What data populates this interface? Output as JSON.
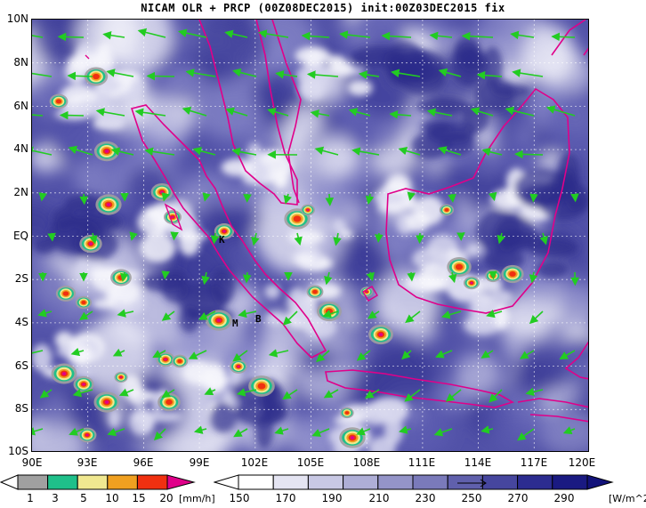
{
  "title": "NICAM OLR + PRCP (00Z08DEC2015) init:00Z03DEC2015 fix",
  "axes": {
    "y_ticks": [
      "10N",
      "8N",
      "6N",
      "4N",
      "2N",
      "EQ",
      "2S",
      "4S",
      "6S",
      "8S",
      "10S"
    ],
    "x_ticks": [
      "90E",
      "93E",
      "96E",
      "99E",
      "102E",
      "105E",
      "108E",
      "111E",
      "114E",
      "117E",
      "120E"
    ],
    "lon_range": [
      90,
      120
    ],
    "lat_range": [
      -10,
      10
    ]
  },
  "stations": [
    {
      "label": "K",
      "lon": 100.9,
      "lat": -0.3
    },
    {
      "label": "M",
      "lon": 101.7,
      "lat": -4.1
    },
    {
      "label": "B",
      "lon": 103.0,
      "lat": -3.9
    }
  ],
  "precip_colorbar": {
    "labels": [
      "1",
      "3",
      "5",
      "10",
      "15",
      "20"
    ],
    "unit": "[mm/h]",
    "colors": [
      "#a0a0a0",
      "#1fc08a",
      "#f0e890",
      "#f0a020",
      "#f03010",
      "#e0008a"
    ]
  },
  "olr_colorbar": {
    "labels": [
      "150",
      "170",
      "190",
      "210",
      "230",
      "250",
      "270",
      "290"
    ],
    "unit": "[W/m^2]",
    "colors": [
      "#ffffff",
      "#e4e4f2",
      "#c8c8e4",
      "#aeaed6",
      "#9494c8",
      "#7a7aba",
      "#6060ac",
      "#46469e",
      "#2c2c90",
      "#1a1a82"
    ]
  },
  "colors": {
    "coastline": "#e0008a",
    "wind_vectors": "#22cc22",
    "grid": "#ffffff"
  },
  "map_base_colors": [
    "#3a3a96",
    "#5c5cb0",
    "#8888c8",
    "#c0c0e2",
    "#f4f4fb"
  ]
}
